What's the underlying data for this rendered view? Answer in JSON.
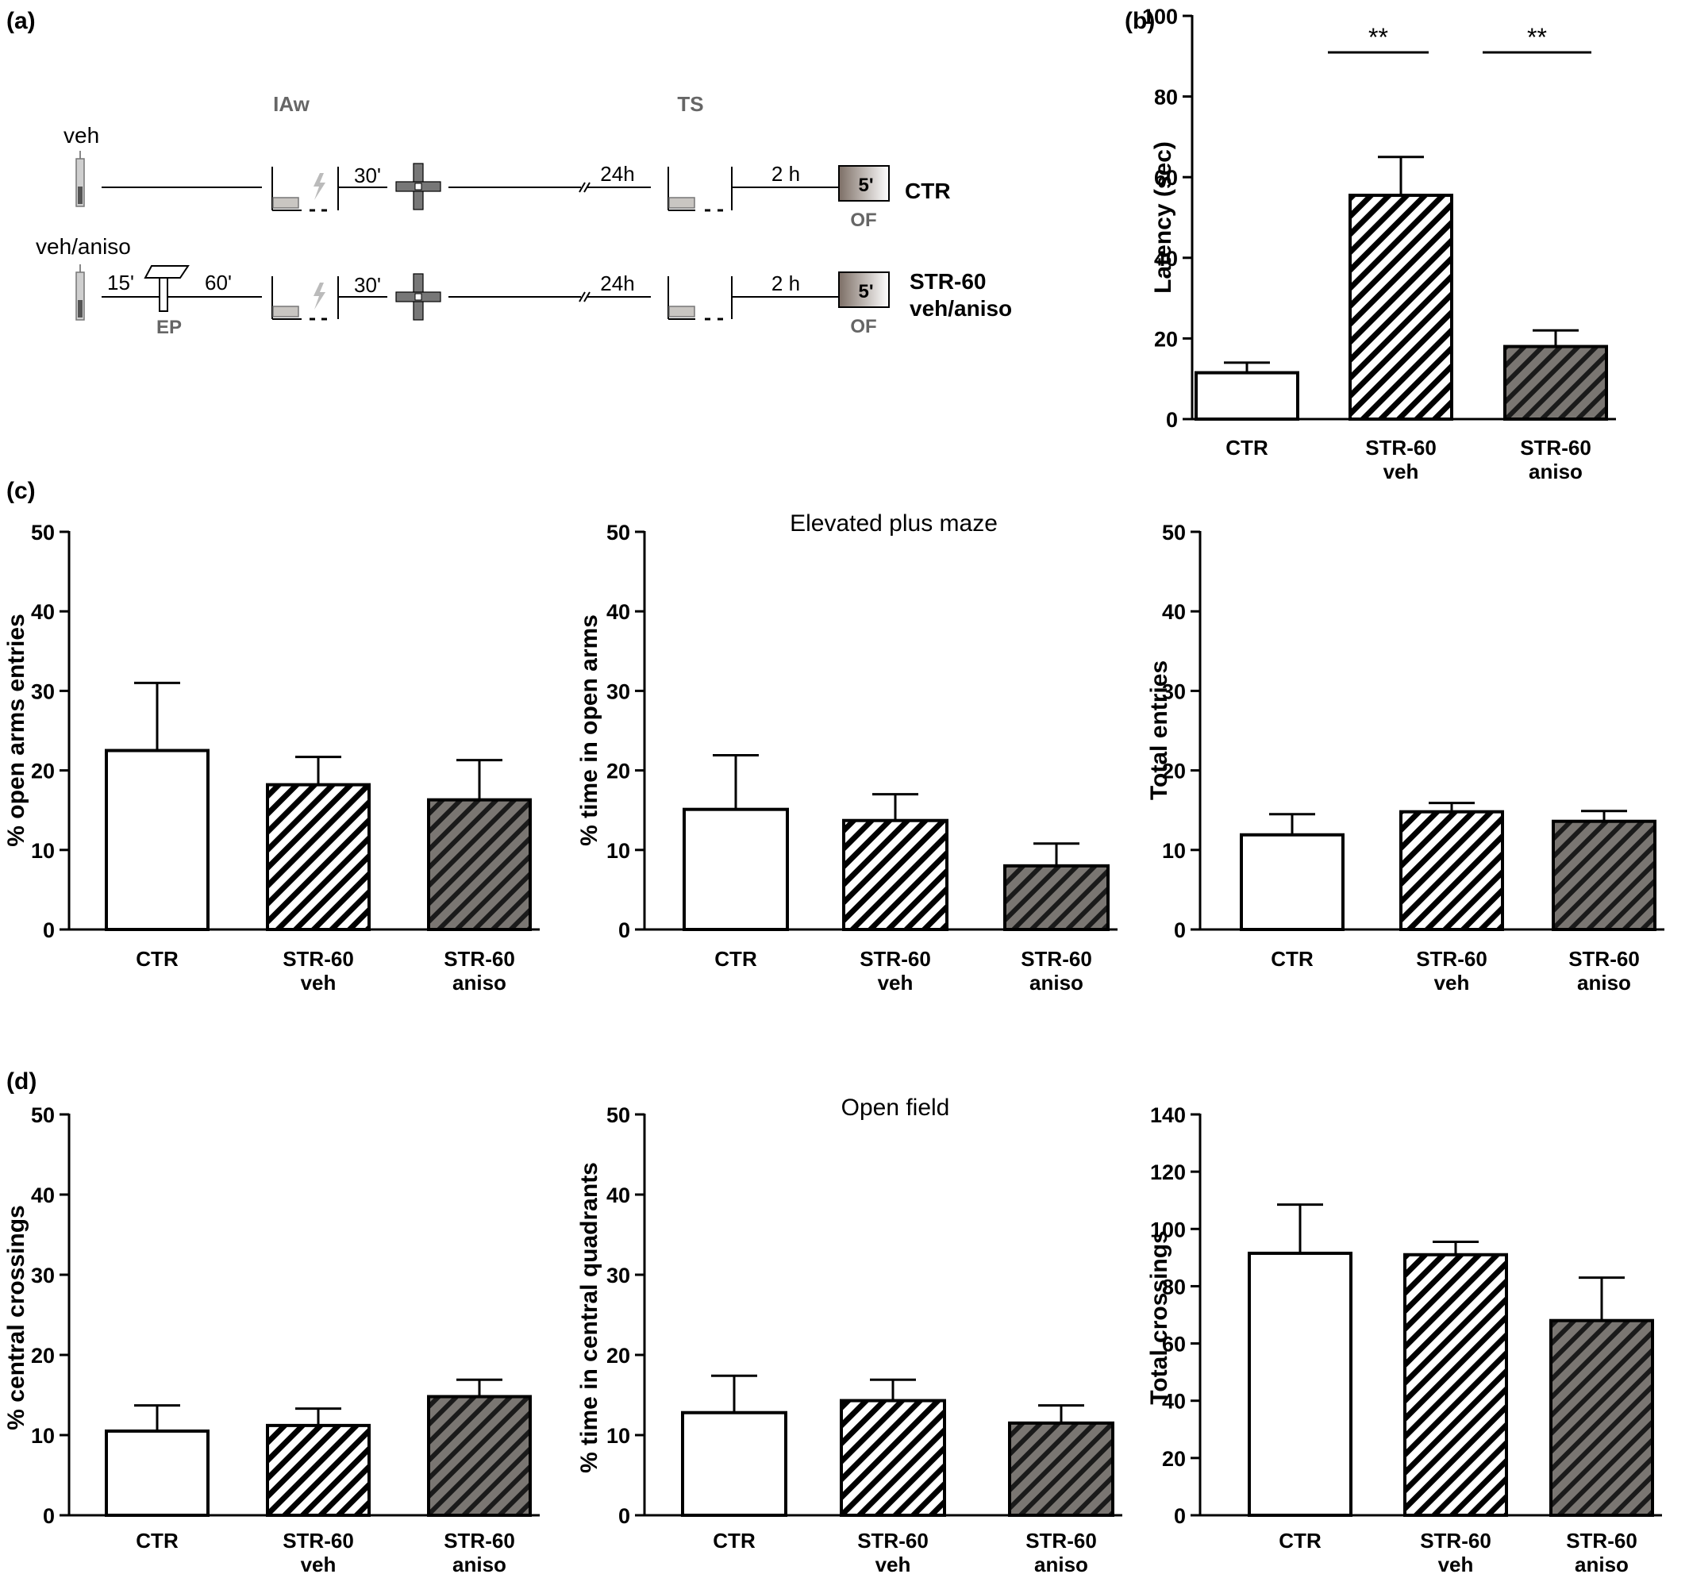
{
  "panel_labels": [
    "(a)",
    "(b)",
    "(c)",
    "(d)"
  ],
  "schematic": {
    "top_group": "veh",
    "bottom_group": "veh/aniso",
    "phase_iaw": "IAw",
    "phase_ts": "TS",
    "t_30": "30'",
    "t_24h": "24h",
    "t_2h": "2 h",
    "t_15": "15'",
    "t_60": "60'",
    "ep": "EP",
    "box_5": "5'",
    "of": "OF",
    "ctr": "CTR",
    "str60": "STR-60",
    "veh_aniso": "veh/aniso"
  },
  "section_titles": {
    "epm": "Elevated plus maze",
    "of": "Open field"
  },
  "colors": {
    "ctr_fill": "#ffffff",
    "veh_hatch": "#ffffff",
    "aniso_fill": "#7a7672",
    "stroke": "#000000"
  },
  "chart_data": [
    {
      "panel": "b",
      "type": "bar",
      "ylabel": "Latency (sec)",
      "ylim": [
        0,
        100
      ],
      "yticks": [
        "0",
        "20",
        "40",
        "60",
        "80",
        "100"
      ],
      "categories": [
        [
          "CTR"
        ],
        [
          "STR-60",
          "veh"
        ],
        [
          "STR-60",
          "aniso"
        ]
      ],
      "values": [
        11.5,
        55.5,
        18
      ],
      "errors": [
        2.5,
        9.5,
        4
      ],
      "significance": [
        "**",
        "**"
      ]
    },
    {
      "panel": "c1",
      "type": "bar",
      "ylabel": "% open arms entries",
      "ylim": [
        0,
        50
      ],
      "yticks": [
        "0",
        "10",
        "20",
        "30",
        "40",
        "50"
      ],
      "categories": [
        [
          "CTR"
        ],
        [
          "STR-60",
          "veh"
        ],
        [
          "STR-60",
          "aniso"
        ]
      ],
      "values": [
        22.5,
        18.2,
        16.3
      ],
      "errors": [
        8.5,
        3.5,
        5
      ]
    },
    {
      "panel": "c2",
      "type": "bar",
      "ylabel": "% time in open arms",
      "ylim": [
        0,
        50
      ],
      "yticks": [
        "0",
        "10",
        "20",
        "30",
        "40",
        "50"
      ],
      "categories": [
        [
          "CTR"
        ],
        [
          "STR-60",
          "veh"
        ],
        [
          "STR-60",
          "aniso"
        ]
      ],
      "values": [
        15.1,
        13.7,
        8
      ],
      "errors": [
        6.8,
        3.3,
        2.8
      ]
    },
    {
      "panel": "c3",
      "type": "bar",
      "ylabel": "Total entries",
      "ylim": [
        0,
        50
      ],
      "yticks": [
        "0",
        "10",
        "20",
        "30",
        "40",
        "50"
      ],
      "categories": [
        [
          "CTR"
        ],
        [
          "STR-60",
          "veh"
        ],
        [
          "STR-60",
          "aniso"
        ]
      ],
      "values": [
        11.9,
        14.8,
        13.6
      ],
      "errors": [
        2.6,
        1.1,
        1.3
      ]
    },
    {
      "panel": "d1",
      "type": "bar",
      "ylabel": "% central crossings",
      "ylim": [
        0,
        50
      ],
      "yticks": [
        "0",
        "10",
        "20",
        "30",
        "40",
        "50"
      ],
      "categories": [
        [
          "CTR"
        ],
        [
          "STR-60",
          "veh"
        ],
        [
          "STR-60",
          "aniso"
        ]
      ],
      "values": [
        10.5,
        11.2,
        14.8
      ],
      "errors": [
        3.2,
        2.1,
        2.1
      ]
    },
    {
      "panel": "d2",
      "type": "bar",
      "ylabel": "% time in central quadrants",
      "ylim": [
        0,
        50
      ],
      "yticks": [
        "0",
        "10",
        "20",
        "30",
        "40",
        "50"
      ],
      "categories": [
        [
          "CTR"
        ],
        [
          "STR-60",
          "veh"
        ],
        [
          "STR-60",
          "aniso"
        ]
      ],
      "values": [
        12.8,
        14.3,
        11.5
      ],
      "errors": [
        4.6,
        2.6,
        2.2
      ]
    },
    {
      "panel": "d3",
      "type": "bar",
      "ylabel": "Total crossings",
      "ylim": [
        0,
        140
      ],
      "yticks": [
        "0",
        "20",
        "40",
        "60",
        "80",
        "100",
        "120",
        "140"
      ],
      "categories": [
        [
          "CTR"
        ],
        [
          "STR-60",
          "veh"
        ],
        [
          "STR-60",
          "aniso"
        ]
      ],
      "values": [
        91.5,
        91,
        68
      ],
      "errors": [
        17,
        4.5,
        15
      ]
    }
  ]
}
